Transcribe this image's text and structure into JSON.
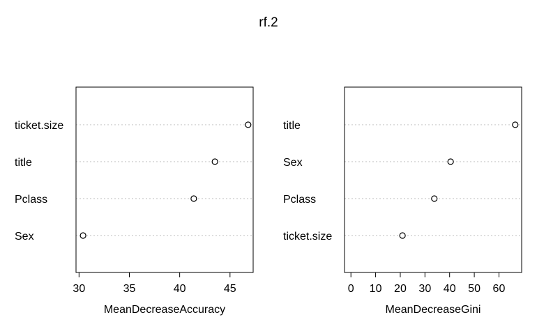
{
  "figure": {
    "title": "rf.2"
  },
  "chart_data": [
    {
      "type": "scatter",
      "subtype": "dotchart",
      "title": "",
      "xlabel": "MeanDecreaseAccuracy",
      "ylabel": "",
      "xlim": [
        29.7,
        47.3
      ],
      "xticks": [
        30,
        35,
        40,
        45
      ],
      "xtick_labels": [
        "30",
        "35",
        "40",
        "45"
      ],
      "grid": "dotted horizontal guide lines per category",
      "categories": [
        "ticket.size",
        "title",
        "Pclass",
        "Sex"
      ],
      "values": [
        46.8,
        43.5,
        41.4,
        30.4
      ]
    },
    {
      "type": "scatter",
      "subtype": "dotchart",
      "title": "",
      "xlabel": "MeanDecreaseGini",
      "ylabel": "",
      "xlim": [
        -2.6,
        69.2
      ],
      "xticks": [
        0,
        10,
        20,
        30,
        40,
        50,
        60
      ],
      "xtick_labels": [
        "0",
        "10",
        "20",
        "30",
        "40",
        "50",
        "60"
      ],
      "grid": "dotted horizontal guide lines per category",
      "categories": [
        "title",
        "Sex",
        "Pclass",
        "ticket.size"
      ],
      "values": [
        66.6,
        40.4,
        33.8,
        20.9
      ]
    }
  ],
  "style": {
    "point_stroke": "#000000",
    "grid_color": "#bebebe",
    "frame_color": "#000000"
  }
}
